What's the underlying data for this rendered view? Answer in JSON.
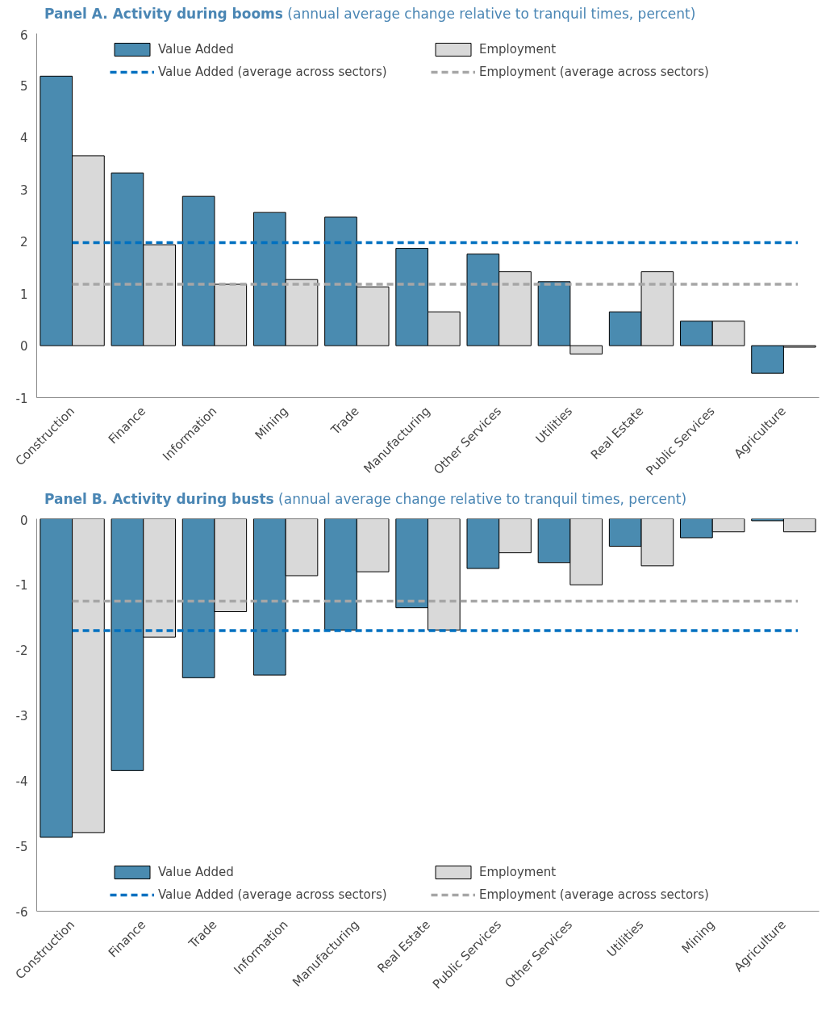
{
  "chart_data": [
    {
      "type": "bar",
      "title": "Panel A. Activity during booms",
      "subtitle": "(annual average change relative to tranquil times, percent)",
      "categories": [
        "Construction",
        "Finance",
        "Information",
        "Mining",
        "Trade",
        "Manufacturing",
        "Other Services",
        "Utilities",
        "Real Estate",
        "Public Services",
        "Agriculture"
      ],
      "series": [
        {
          "name": "Value Added",
          "color": "#4a8bb0",
          "values": [
            5.18,
            3.32,
            2.87,
            2.56,
            2.47,
            1.87,
            1.76,
            1.23,
            0.65,
            0.47,
            -0.53
          ]
        },
        {
          "name": "Employment",
          "color": "#d9d9d9",
          "values": [
            3.65,
            1.94,
            1.18,
            1.27,
            1.13,
            0.65,
            1.42,
            -0.16,
            1.42,
            0.47,
            -0.03
          ]
        }
      ],
      "ref_lines": [
        {
          "axis": "y",
          "value": 1.98,
          "label": "Value Added (average across sectors)",
          "color": "#0070c0",
          "line_style": "dashed"
        },
        {
          "axis": "y",
          "value": 1.18,
          "label": "Employment (average across sectors)",
          "color": "#a6a6a6",
          "line_style": "dashed"
        }
      ],
      "ylim": [
        -1,
        6
      ],
      "yticks": [
        -1,
        0,
        1,
        2,
        3,
        4,
        5,
        6
      ],
      "grid": false,
      "legend": "top"
    },
    {
      "type": "bar",
      "title": "Panel B. Activity during busts",
      "subtitle": "(annual average change relative to tranquil times, percent)",
      "categories": [
        "Construction",
        "Finance",
        "Trade",
        "Information",
        "Manufacturing",
        "Real Estate",
        "Public Services",
        "Other Services",
        "Utilities",
        "Mining",
        "Agriculture"
      ],
      "series": [
        {
          "name": "Value Added",
          "color": "#4a8bb0",
          "values": [
            -4.87,
            -3.85,
            -2.43,
            -2.39,
            -1.7,
            -1.36,
            -0.76,
            -0.67,
            -0.42,
            -0.29,
            -0.03
          ]
        },
        {
          "name": "Employment",
          "color": "#d9d9d9",
          "values": [
            -4.8,
            -1.81,
            -1.42,
            -0.87,
            -0.81,
            -1.7,
            -0.52,
            -1.01,
            -0.72,
            -0.2,
            -0.2
          ]
        }
      ],
      "ref_lines": [
        {
          "axis": "y",
          "value": -1.71,
          "label": "Value Added (average across sectors)",
          "color": "#0070c0",
          "line_style": "dashed"
        },
        {
          "axis": "y",
          "value": -1.26,
          "label": "Employment (average across sectors)",
          "color": "#a6a6a6",
          "line_style": "dashed"
        }
      ],
      "ylim": [
        -6,
        0
      ],
      "yticks": [
        -6,
        -5,
        -4,
        -3,
        -2,
        -1,
        0
      ],
      "grid": false,
      "legend": "bottom"
    }
  ]
}
